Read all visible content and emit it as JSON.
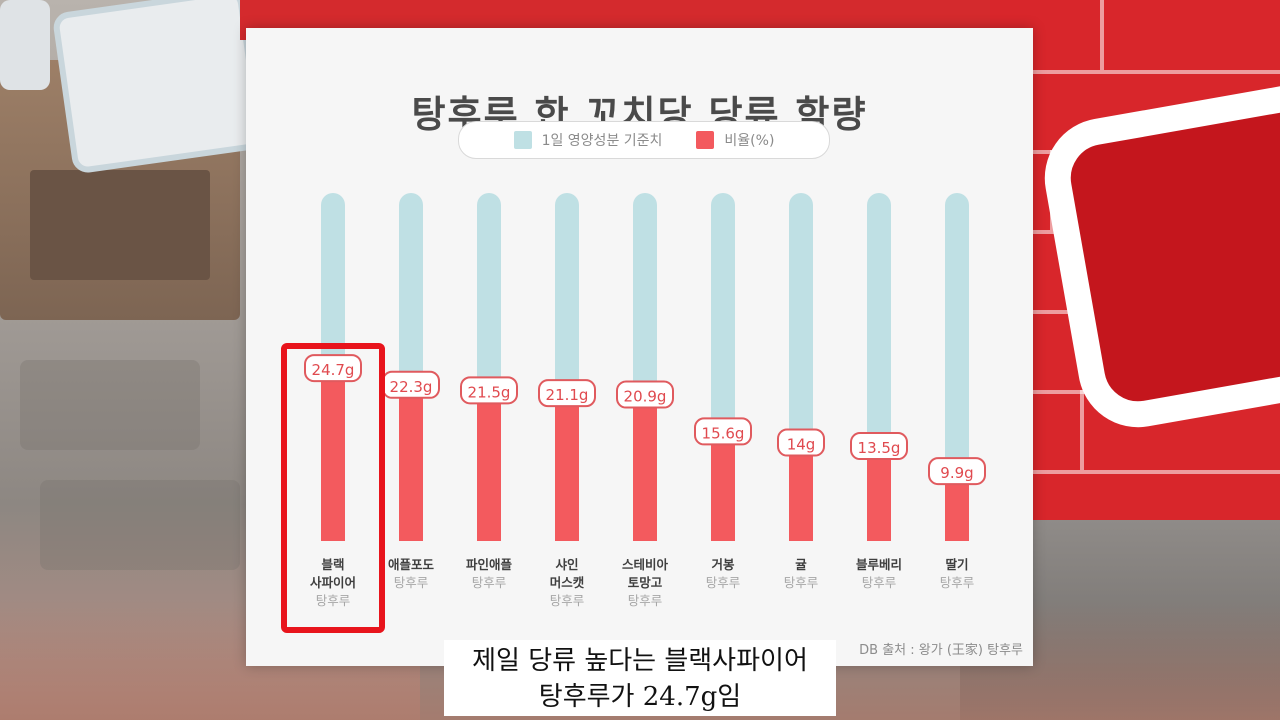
{
  "chart_data": {
    "type": "bar",
    "title": "탕후루 한 꼬치당 당류 함량",
    "legend": [
      {
        "label": "1일 영양성분 기준치",
        "color": "#bfe0e4"
      },
      {
        "label": "비율(%)",
        "color": "#f35a5e"
      }
    ],
    "categories": [
      {
        "name": [
          "블랙",
          "사파이어"
        ],
        "sub": "탕후루"
      },
      {
        "name": [
          "애플포도"
        ],
        "sub": "탕후루"
      },
      {
        "name": [
          "파인애플"
        ],
        "sub": "탕후루"
      },
      {
        "name": [
          "샤인",
          "머스캣"
        ],
        "sub": "탕후루"
      },
      {
        "name": [
          "스테비아",
          "토망고"
        ],
        "sub": "탕후루"
      },
      {
        "name": [
          "거봉"
        ],
        "sub": "탕후루"
      },
      {
        "name": [
          "귤"
        ],
        "sub": "탕후루"
      },
      {
        "name": [
          "블루베리"
        ],
        "sub": "탕후루"
      },
      {
        "name": [
          "딸기"
        ],
        "sub": "탕후루"
      }
    ],
    "values": [
      24.7,
      22.3,
      21.5,
      21.1,
      20.9,
      15.6,
      14,
      13.5,
      9.9
    ],
    "value_labels": [
      "24.7g",
      "22.3g",
      "21.5g",
      "21.1g",
      "20.9g",
      "15.6g",
      "14g",
      "13.5g",
      "9.9g"
    ],
    "reference_max": 50,
    "unit": "g",
    "highlight_index": 0,
    "highlight_color": "#e8141c"
  },
  "source_text": "DB  출처 : 왕가 (王家) 탕후루",
  "caption": {
    "line1": "제일 당류 높다는 블랙사파이어",
    "line2": "탕후루가 24.7g임"
  }
}
